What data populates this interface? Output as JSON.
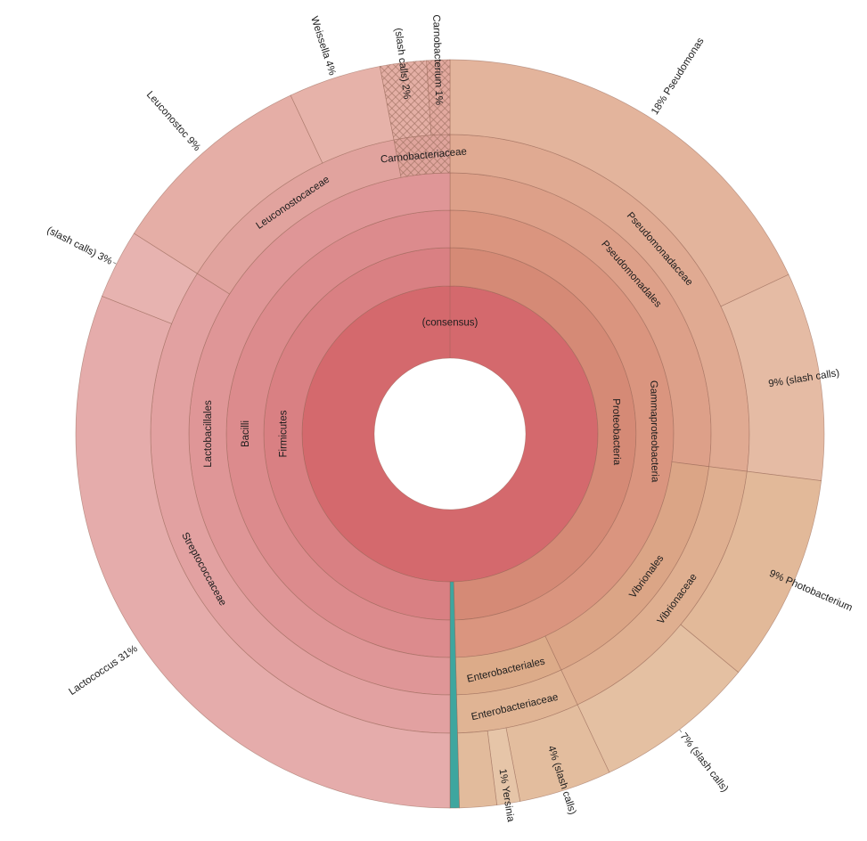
{
  "chart": {
    "background": "#ffffff",
    "center_label": "(consensus)"
  },
  "chart_data": {
    "type": "sunburst",
    "unit": "%",
    "title": "",
    "style": {
      "background": "#ffffff",
      "stroke_color": "#916051",
      "text_color": "#1c1c1c",
      "hatch_color": "#9e6f60",
      "leader_color": "#777777"
    },
    "root": {
      "name": "(consensus)",
      "percent": 100,
      "color": "#d4696d",
      "children": [
        {
          "name": "Proteobacteria",
          "percent": 49.6,
          "color": "#d58a76",
          "children": [
            {
              "name": "Gammaproteobacteria",
              "percent": 49.6,
              "color": "#da957f",
              "children": [
                {
                  "name": "Pseudomonadales",
                  "percent": 27,
                  "color": "#dda089",
                  "children": [
                    {
                      "name": "Pseudomonadaceae",
                      "percent": 27,
                      "color": "#e0aa92",
                      "children": [
                        {
                          "name": "Pseudomonas",
                          "percent": 18,
                          "color": "#e3b49c",
                          "outer_label": "18%  Pseudomonas"
                        },
                        {
                          "name": "(slash calls)",
                          "percent": 9,
                          "color": "#e5bba4",
                          "outer_label": "9%  (slash calls)"
                        }
                      ]
                    }
                  ]
                },
                {
                  "name": "Vibrionales",
                  "percent": 16,
                  "color": "#dba586",
                  "children": [
                    {
                      "name": "Vibrionaceae",
                      "percent": 16,
                      "color": "#dfaf90",
                      "children": [
                        {
                          "name": "Photobacterium",
                          "percent": 9,
                          "color": "#e2b999",
                          "outer_label": "9%  Photobacterium"
                        },
                        {
                          "name": "(slash calls)",
                          "percent": 7,
                          "color": "#e4c0a2",
                          "outer_label": "7%  (slash calls)"
                        }
                      ]
                    }
                  ]
                },
                {
                  "name": "Enterobacteriales",
                  "percent": 6.6,
                  "color": "#dcab89",
                  "children": [
                    {
                      "name": "Enterobacteriaceae",
                      "percent": 6.6,
                      "color": "#e0b494",
                      "children": [
                        {
                          "name": "(slash calls)",
                          "percent": 4,
                          "color": "#e3bd9e",
                          "outer_label": "4%  (slash calls)"
                        },
                        {
                          "name": "Yersinia",
                          "percent": 1,
                          "color": "#e6c5a8",
                          "outer_label": "1%  Yersinia"
                        },
                        {
                          "name": "",
                          "percent": 1.6,
                          "color": "#e2bb9c"
                        }
                      ]
                    }
                  ]
                }
              ]
            }
          ]
        },
        {
          "name": "",
          "percent": 0.4,
          "color": "#3ea69f",
          "extend_to_edge": true
        },
        {
          "name": "Firmicutes",
          "percent": 50,
          "color": "#d98083",
          "children": [
            {
              "name": "Bacilli",
              "percent": 50,
              "color": "#dc8b8d",
              "children": [
                {
                  "name": "Lactobacillales",
                  "percent": 50,
                  "color": "#df9697",
                  "children": [
                    {
                      "name": "Streptococcaceae",
                      "percent": 34,
                      "color": "#e2a1a1",
                      "children": [
                        {
                          "name": "Lactococcus",
                          "percent": 31,
                          "color": "#e5acab",
                          "outer_label": "Lactococcus  31%"
                        },
                        {
                          "name": "(slash calls)",
                          "percent": 3,
                          "color": "#e7b3b0",
                          "outer_label": "(slash calls)  3%"
                        }
                      ]
                    },
                    {
                      "name": "Leuconostocaceae",
                      "percent": 13,
                      "color": "#e1a39e",
                      "children": [
                        {
                          "name": "Leuconostoc",
                          "percent": 9,
                          "color": "#e5aea6",
                          "outer_label": "Leuconostoc  9%"
                        },
                        {
                          "name": "Weissella",
                          "percent": 4,
                          "color": "#e6b2a9",
                          "outer_label": "Weissella  4%"
                        }
                      ]
                    },
                    {
                      "name": "Carnobacteriaceae",
                      "percent": 3,
                      "color": "#dfa49c",
                      "hatch": true,
                      "children": [
                        {
                          "name": "(slash calls)",
                          "percent": 2,
                          "color": "#e4afa5",
                          "outer_label": "(slash calls)  2%",
                          "hatch": true
                        },
                        {
                          "name": "Carnobacterium",
                          "percent": 1,
                          "color": "#e2a99f",
                          "outer_label": "Carnobacterium  1%",
                          "hatch": true
                        }
                      ]
                    }
                  ]
                }
              ]
            }
          ]
        }
      ]
    }
  }
}
